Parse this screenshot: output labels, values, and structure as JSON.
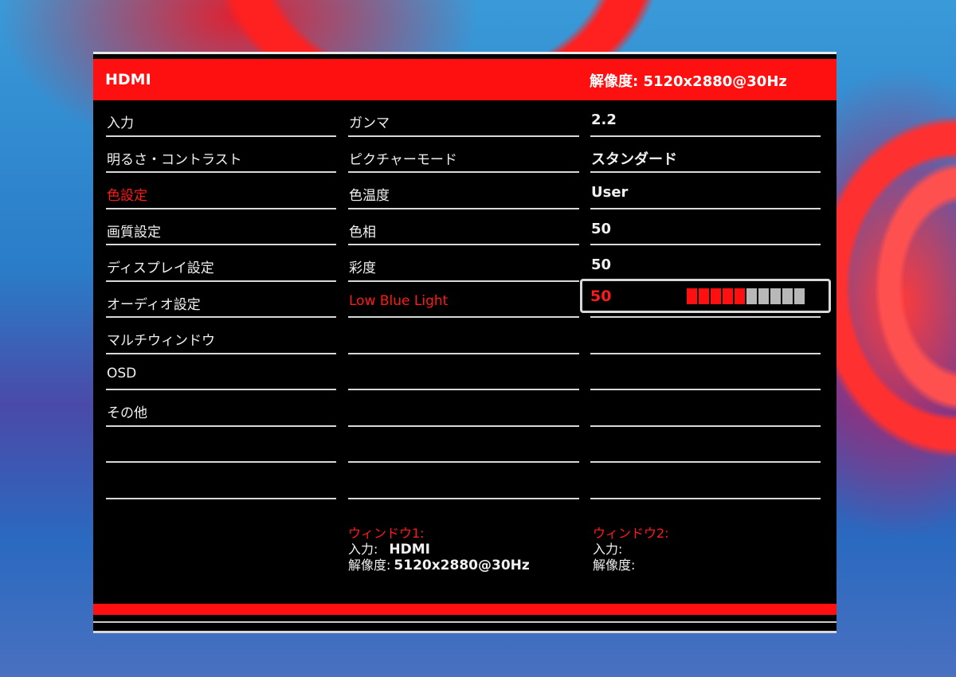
{
  "header": {
    "source": "HDMI",
    "resolution": "解像度: 5120x2880@30Hz"
  },
  "menu": [
    {
      "label": "入力"
    },
    {
      "label": "明るさ・コントラスト"
    },
    {
      "label": "色設定",
      "active": true
    },
    {
      "label": "画質設定"
    },
    {
      "label": "ディスプレイ設定"
    },
    {
      "label": "オーディオ設定"
    },
    {
      "label": "マルチウィンドウ"
    },
    {
      "label": "OSD"
    },
    {
      "label": "その他"
    },
    {
      "label": ""
    },
    {
      "label": ""
    }
  ],
  "submenu": [
    {
      "label": "ガンマ"
    },
    {
      "label": "ピクチャーモード"
    },
    {
      "label": "色温度"
    },
    {
      "label": "色相"
    },
    {
      "label": "彩度"
    },
    {
      "label": "Low Blue Light",
      "active": true
    },
    {
      "label": ""
    },
    {
      "label": ""
    },
    {
      "label": ""
    },
    {
      "label": ""
    },
    {
      "label": ""
    }
  ],
  "values": [
    {
      "value": "2.2"
    },
    {
      "value": "スタンダード"
    },
    {
      "value": "User"
    },
    {
      "value": "50"
    },
    {
      "value": "50"
    },
    {
      "value": ""
    },
    {
      "value": ""
    },
    {
      "value": ""
    },
    {
      "value": ""
    },
    {
      "value": ""
    },
    {
      "value": ""
    }
  ],
  "selected_slider": {
    "value": "50",
    "level_percent": 50,
    "segments_total": 10
  },
  "window1": {
    "title": "ウィンドウ1:",
    "input_label": "入力:",
    "input_value": "HDMI",
    "res_label": "解像度:",
    "res_value": "5120x2880@30Hz"
  },
  "window2": {
    "title": "ウィンドウ2:",
    "input_label": "入力:",
    "res_label": "解像度:"
  },
  "colors": {
    "accent": "#ff1010",
    "panel": "#000000",
    "text": "#f0f0f0"
  }
}
